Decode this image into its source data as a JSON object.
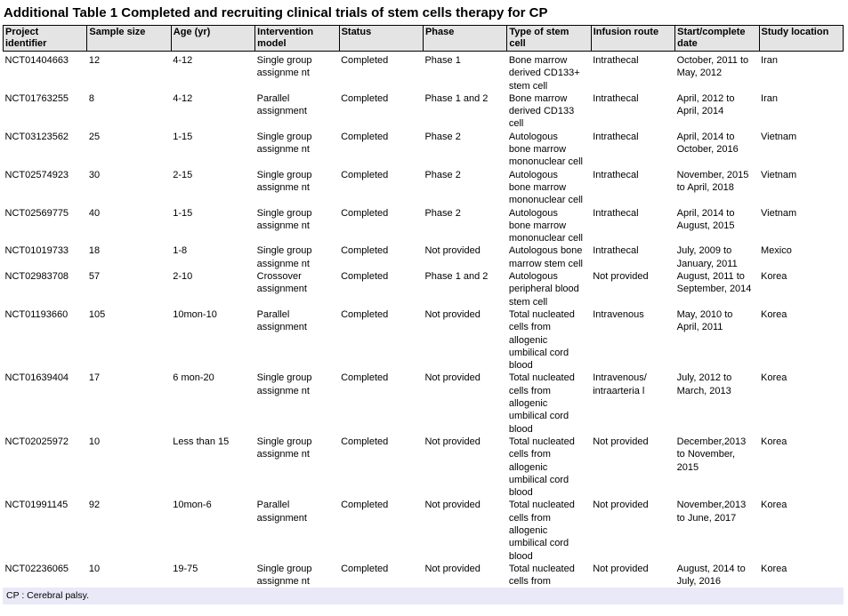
{
  "title": "Additional Table 1 Completed and recruiting clinical trials of stem cells therapy for CP",
  "footnote": "CP : Cerebral palsy.",
  "colors": {
    "header_background": "#e4e4e4",
    "footnote_background": "#e9e9f8",
    "border": "#000000",
    "text": "#000000",
    "page_background": "#ffffff"
  },
  "table": {
    "columns": [
      "Project\nidentifier",
      "Sample size",
      "Age (yr)",
      "Intervention\nmodel",
      "Status",
      "Phase",
      "Type of stem\ncell",
      "Infusion route",
      "Start/complete\ndate",
      "Study location"
    ],
    "rows": [
      [
        "NCT01404663",
        "12",
        "4-12",
        "Single group\nassignme nt",
        "Completed",
        "Phase 1",
        "Bone marrow\nderived CD133+\nstem cell",
        "Intrathecal",
        "October, 2011 to\nMay, 2012",
        "Iran"
      ],
      [
        "NCT01763255",
        "8",
        "4-12",
        "Parallel\nassignment",
        "Completed",
        "Phase 1 and 2",
        "Bone marrow\nderived CD133\ncell",
        "Intrathecal",
        "April, 2012 to\nApril, 2014",
        "Iran"
      ],
      [
        "NCT03123562",
        "25",
        "1-15",
        "Single group\nassignme nt",
        "Completed",
        "Phase 2",
        "Autologous\nbone marrow\nmononuclear cell",
        "Intrathecal",
        "April, 2014 to\nOctober, 2016",
        "Vietnam"
      ],
      [
        "NCT02574923",
        "30",
        "2-15",
        "Single group\nassignme nt",
        "Completed",
        "Phase 2",
        "Autologous\nbone marrow\nmononuclear cell",
        "Intrathecal",
        "November, 2015\nto April, 2018",
        "Vietnam"
      ],
      [
        "NCT02569775",
        "40",
        "1-15",
        "Single group\nassignme nt",
        "Completed",
        "Phase 2",
        "Autologous\nbone marrow\nmononuclear cell",
        "Intrathecal",
        "April, 2014 to\nAugust, 2015",
        "Vietnam"
      ],
      [
        "NCT01019733",
        "18",
        "1-8",
        "Single group\nassignme nt",
        "Completed",
        "Not provided",
        "Autologous bone\nmarrow stem cell",
        "Intrathecal",
        "July, 2009 to\nJanuary, 2011",
        "Mexico"
      ],
      [
        "NCT02983708",
        "57",
        "2-10",
        "Crossover\nassignment",
        "Completed",
        "Phase 1 and 2",
        "Autologous\nperipheral blood\nstem cell",
        "Not provided",
        "August, 2011 to\nSeptember, 2014",
        "Korea"
      ],
      [
        "NCT01193660",
        "105",
        "10mon-10",
        "Parallel\nassignment",
        "Completed",
        "Not provided",
        "Total nucleated\ncells from\nallogenic\numbilical cord\nblood",
        "Intravenous",
        "May, 2010 to\nApril, 2011",
        "Korea"
      ],
      [
        "NCT01639404",
        "17",
        "6 mon-20",
        "Single group\nassignme nt",
        "Completed",
        "Not provided",
        "Total nucleated\ncells from\nallogenic\numbilical cord\nblood",
        "Intravenous/\nintraarteria l",
        "July, 2012 to\nMarch, 2013",
        "Korea"
      ],
      [
        "NCT02025972",
        "10",
        "Less than 15",
        "Single group\nassignme nt",
        "Completed",
        "Not provided",
        "Total nucleated\ncells from\nallogenic\numbilical cord\nblood",
        "Not provided",
        "December,2013\nto November,\n2015",
        "Korea"
      ],
      [
        "NCT01991145",
        "92",
        "10mon-6",
        "Parallel\nassignment",
        "Completed",
        "Not provided",
        "Total nucleated\ncells from\nallogenic\numbilical cord\nblood",
        "Not provided",
        "November,2013\nto June, 2017",
        "Korea"
      ],
      [
        "NCT02236065",
        "10",
        "19-75",
        "Single group\nassignme nt",
        "Completed",
        "Not provided",
        "Total nucleated\ncells from",
        "Not provided",
        "August, 2014 to\nJuly, 2016",
        "Korea"
      ]
    ]
  }
}
